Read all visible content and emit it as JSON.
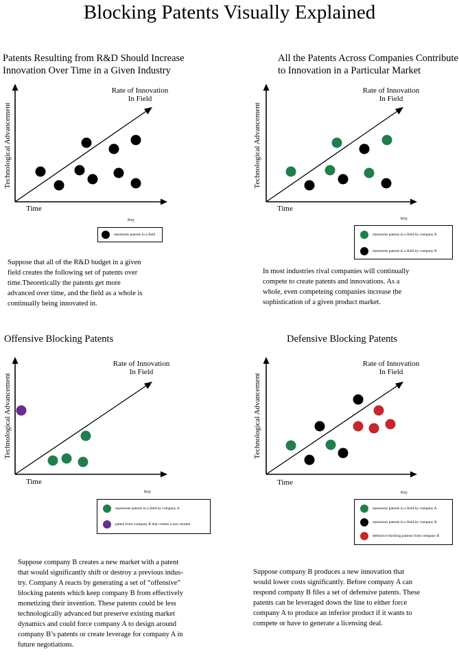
{
  "title": "Blocking Patents Visually Explained",
  "colors": {
    "green": "#1f7f4c",
    "black": "#000000",
    "purple": "#6a2d8c",
    "red": "#c8262a"
  },
  "panels": [
    {
      "heading_lines": [
        "Patents Resulting from R&D Should Increase",
        "Innovation Over Time in a Given Industry"
      ],
      "rate_lines": [
        "Rate of Innovation",
        "In Field"
      ],
      "ylabel": "Technological Advancement",
      "xlabel": "Time",
      "key_title": "Key",
      "legend": [
        {
          "color": "black",
          "text": "represents patents in a field"
        }
      ],
      "paragraph_lines": [
        "Suppose that all of the R&D budget in a given",
        "field creates the following set of patents over",
        "time.Theoretically the patents get more",
        "advanced over time, and the field as a whole is",
        "continually being innovated in."
      ]
    },
    {
      "heading_lines": [
        "All the Patents Across Companies Contribute",
        "to Innovation in a Particular Market"
      ],
      "rate_lines": [
        "Rate of Innovation",
        "In Field"
      ],
      "ylabel": "Technological Advancement",
      "xlabel": "Time",
      "key_title": "Key",
      "legend": [
        {
          "color": "green",
          "text": "represents patents in a field by company A"
        },
        {
          "color": "black",
          "text": "represents patents in a field by company B"
        }
      ],
      "paragraph_lines": [
        "In most industries rival companies will continually",
        "compete to create patents and innovations. As a",
        "whole, even competeing companies increase the",
        "sophistication of a given product market."
      ]
    },
    {
      "heading_lines": [
        "Offensive Blocking Patents"
      ],
      "rate_lines": [
        "Rate of Innovation",
        "In Field"
      ],
      "ylabel": "Technological Advancement",
      "xlabel": "Time",
      "key_title": "Key",
      "legend": [
        {
          "color": "green",
          "text": "represents patents in a field by company A"
        },
        {
          "color": "purple",
          "text": "patent from company B that creates a new market"
        }
      ],
      "paragraph_lines": [
        "Suppose company B creates a new market with a patent",
        "that would significantly shift or destroy a previous indus-",
        "try. Company A reacts by generating a set of “offensive”",
        "blocking patents which keep company B from effectively",
        "monetizing their invention. These patents could be less",
        "technologically advanced but preserve existing market",
        "dynamics and could force company A to design around",
        "company B’s patents or create leverage for company A in",
        "future negotiations."
      ]
    },
    {
      "heading_lines": [
        "Defensive Blocking Patents"
      ],
      "rate_lines": [
        "Rate of Innovation",
        "In Field"
      ],
      "ylabel": "Technological Advancement",
      "xlabel": "Time",
      "key_title": "Key",
      "legend": [
        {
          "color": "green",
          "text": "represents patents in a field by company A"
        },
        {
          "color": "black",
          "text": "represents patents in a field by company B"
        },
        {
          "color": "red",
          "text": "defensive blocking patents from company B"
        }
      ],
      "paragraph_lines": [
        "Suppose company B produces a new innovation that",
        "would lower costs significantly. Before company A can",
        "respond company B files a set of defensive patents. These",
        "patents can be leveraged down the line to either force",
        "company A to produce an inferior product if it wants to",
        "compete or have to generate a licensing deal."
      ]
    }
  ]
}
